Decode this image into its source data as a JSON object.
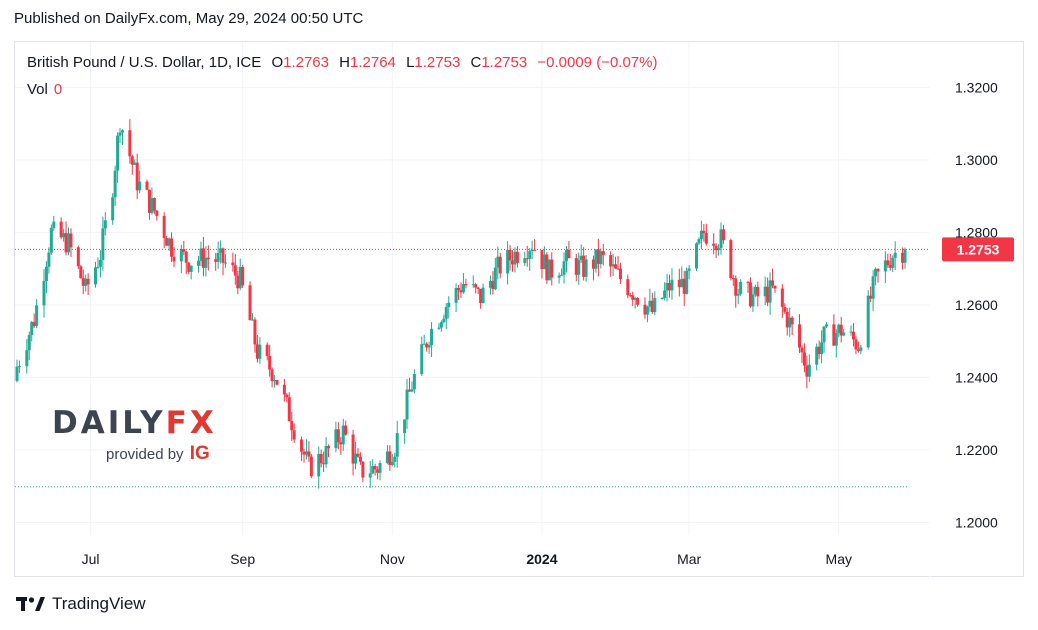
{
  "header": {
    "published": "Published on DailyFx.com, May 29, 2024 00:50 UTC"
  },
  "legend": {
    "symbol": "British Pound / U.S. Dollar, 1D, ICE",
    "o_label": "O",
    "o_value": "1.2763",
    "h_label": "H",
    "h_value": "1.2764",
    "l_label": "L",
    "l_value": "1.2753",
    "c_label": "C",
    "c_value": "1.2753",
    "change": "−0.0009 (−0.07%)",
    "vol_label": "Vol",
    "vol_value": "0"
  },
  "watermark": {
    "word_a": "DAILY",
    "word_b": "FX",
    "provided": "provided by",
    "ig": "IG"
  },
  "footer": {
    "brand": "TradingView"
  },
  "colors": {
    "up": "#22ab94",
    "down": "#f23645",
    "text": "#131722",
    "grid": "#f0f3fa"
  },
  "chart_data": {
    "type": "candlestick",
    "instrument": "British Pound / U.S. Dollar",
    "interval": "1D",
    "x_tick_labels": [
      "Jul",
      "Sep",
      "Nov",
      "2024",
      "Mar",
      "May"
    ],
    "y_tick_labels": [
      "1.3200",
      "1.3000",
      "1.2800",
      "1.2600",
      "1.2400",
      "1.2200",
      "1.2000"
    ],
    "y_ticks": [
      1.32,
      1.3,
      1.28,
      1.26,
      1.24,
      1.22,
      1.2
    ],
    "ylim": [
      1.1965,
      1.3325
    ],
    "last_price": 1.2753,
    "last_price_label": "1.2753",
    "reference_line": 1.2098,
    "grid": true,
    "approx_closes": [
      [
        "2023-06-01",
        1.243
      ],
      [
        "2023-06-08",
        1.256
      ],
      [
        "2023-06-15",
        1.28
      ],
      [
        "2023-06-22",
        1.277
      ],
      [
        "2023-06-29",
        1.264
      ],
      [
        "2023-07-05",
        1.274
      ],
      [
        "2023-07-10",
        1.293
      ],
      [
        "2023-07-13",
        1.311
      ],
      [
        "2023-07-20",
        1.294
      ],
      [
        "2023-07-27",
        1.286
      ],
      [
        "2023-08-03",
        1.276
      ],
      [
        "2023-08-10",
        1.272
      ],
      [
        "2023-08-17",
        1.273
      ],
      [
        "2023-08-24",
        1.272
      ],
      [
        "2023-08-31",
        1.267
      ],
      [
        "2023-09-07",
        1.247
      ],
      [
        "2023-09-14",
        1.241
      ],
      [
        "2023-09-21",
        1.228
      ],
      [
        "2023-09-28",
        1.215
      ],
      [
        "2023-10-05",
        1.219
      ],
      [
        "2023-10-12",
        1.225
      ],
      [
        "2023-10-19",
        1.214
      ],
      [
        "2023-10-26",
        1.215
      ],
      [
        "2023-11-02",
        1.221
      ],
      [
        "2023-11-09",
        1.238
      ],
      [
        "2023-11-16",
        1.252
      ],
      [
        "2023-11-23",
        1.26
      ],
      [
        "2023-11-30",
        1.266
      ],
      [
        "2023-12-07",
        1.262
      ],
      [
        "2023-12-14",
        1.27
      ],
      [
        "2023-12-21",
        1.274
      ],
      [
        "2023-12-28",
        1.277
      ],
      [
        "2024-01-04",
        1.269
      ],
      [
        "2024-01-11",
        1.272
      ],
      [
        "2024-01-18",
        1.27
      ],
      [
        "2024-01-25",
        1.273
      ],
      [
        "2024-02-01",
        1.268
      ],
      [
        "2024-02-08",
        1.263
      ],
      [
        "2024-02-15",
        1.258
      ],
      [
        "2024-02-22",
        1.265
      ],
      [
        "2024-02-29",
        1.266
      ],
      [
        "2024-03-07",
        1.28
      ],
      [
        "2024-03-14",
        1.278
      ],
      [
        "2024-03-21",
        1.264
      ],
      [
        "2024-03-28",
        1.262
      ],
      [
        "2024-04-04",
        1.264
      ],
      [
        "2024-04-11",
        1.255
      ],
      [
        "2024-04-18",
        1.243
      ],
      [
        "2024-04-25",
        1.251
      ],
      [
        "2024-05-02",
        1.253
      ],
      [
        "2024-05-09",
        1.249
      ],
      [
        "2024-05-16",
        1.267
      ],
      [
        "2024-05-23",
        1.274
      ],
      [
        "2024-05-28",
        1.2753
      ]
    ]
  }
}
